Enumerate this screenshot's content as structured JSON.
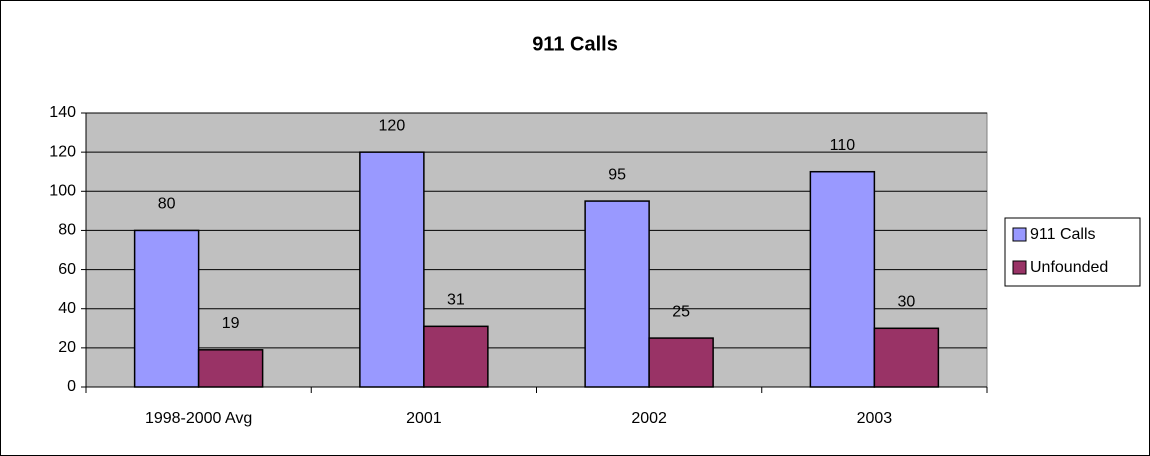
{
  "chart_data": {
    "type": "bar",
    "title": "911 Calls",
    "categories": [
      "1998-2000 Avg",
      "2001",
      "2002",
      "2003"
    ],
    "series": [
      {
        "name": "911 Calls",
        "color": "#9999ff",
        "values": [
          80,
          120,
          95,
          110
        ]
      },
      {
        "name": "Unfounded",
        "color": "#993366",
        "values": [
          19,
          31,
          25,
          30
        ]
      }
    ],
    "ylim": [
      0,
      140
    ],
    "yticks": [
      0,
      20,
      40,
      60,
      80,
      100,
      120,
      140
    ],
    "grid": true,
    "legend": "right"
  }
}
